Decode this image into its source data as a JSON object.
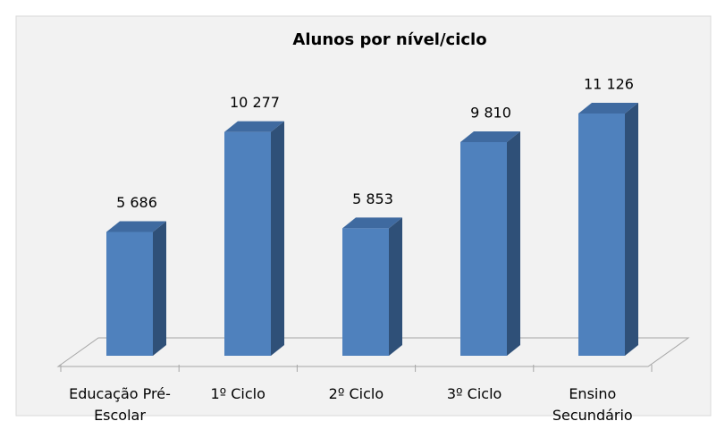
{
  "chart_data": {
    "type": "bar3d",
    "title": "Alunos por nível/ciclo",
    "categories": [
      "Educação Pré-Escolar",
      "1º Ciclo",
      "2º Ciclo",
      "3º Ciclo",
      "Ensino Secundário"
    ],
    "values": [
      5686,
      10277,
      5853,
      9810,
      11126
    ],
    "value_labels": [
      "5 686",
      "10 277",
      "5 853",
      "9 810",
      "11 126"
    ],
    "color": "#4f81bd"
  }
}
